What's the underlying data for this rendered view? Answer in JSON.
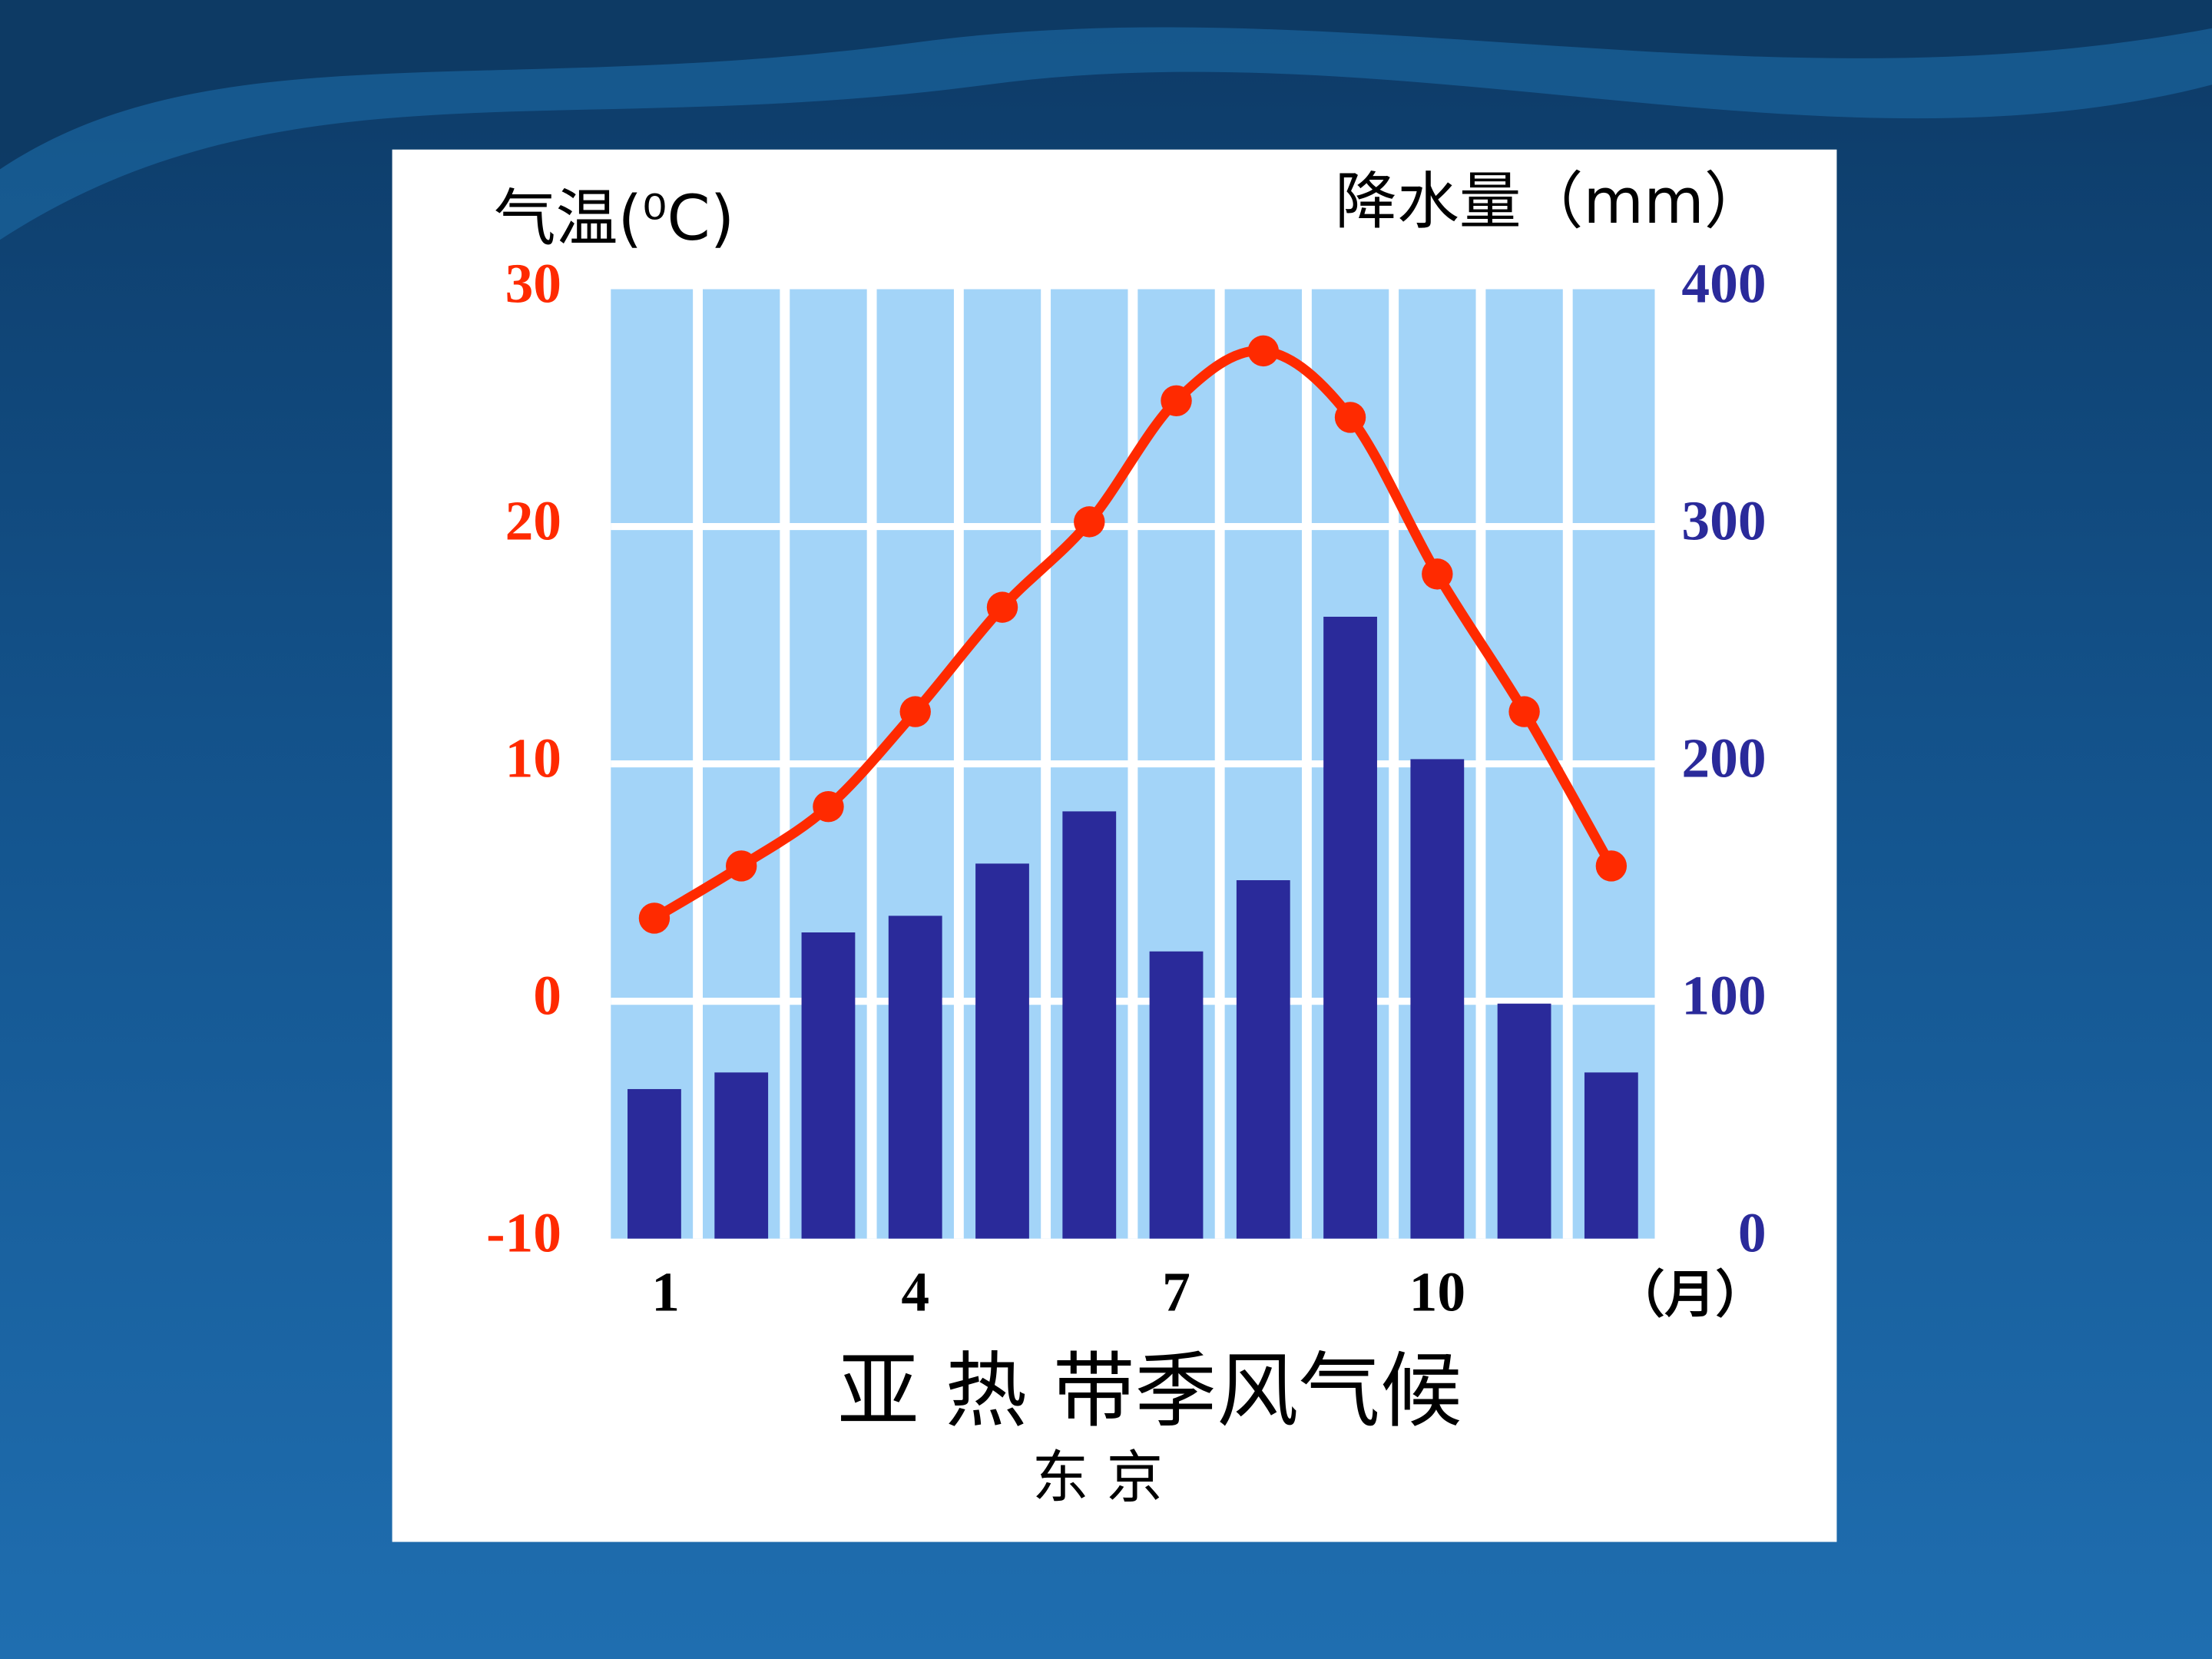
{
  "chart_data": {
    "type": "climate",
    "y_label": "气温(⁰C)",
    "y2_label": "降水量（mm）",
    "title": "亚 热 带季风气候",
    "subtitle": "东 京",
    "x_unit": "（月）",
    "categories": [
      "1",
      null,
      null,
      "4",
      null,
      null,
      "7",
      null,
      null,
      "10",
      null,
      null
    ],
    "series": [
      {
        "name": "降水量",
        "type": "bar",
        "axis": "y2",
        "color": "#2a2a9a",
        "values": [
          63,
          70,
          129,
          136,
          158,
          180,
          121,
          151,
          262,
          202,
          99,
          70
        ]
      },
      {
        "name": "气温",
        "type": "line",
        "color": "#ff2a00",
        "values": [
          3.5,
          5.7,
          8.2,
          12.2,
          16.6,
          20.2,
          25.3,
          27.4,
          24.6,
          18.0,
          12.2,
          5.7
        ]
      }
    ],
    "ylim": [
      -10,
      30
    ],
    "yticks": [
      -10,
      0,
      10,
      20,
      30
    ],
    "ytick_color": "#ff2a00",
    "y2lim": [
      0,
      400
    ],
    "y2ticks": [
      0,
      100,
      200,
      300,
      400
    ],
    "y2tick_color": "#2a2a9a",
    "plot_background": "#a3d4f8",
    "grid": true
  }
}
